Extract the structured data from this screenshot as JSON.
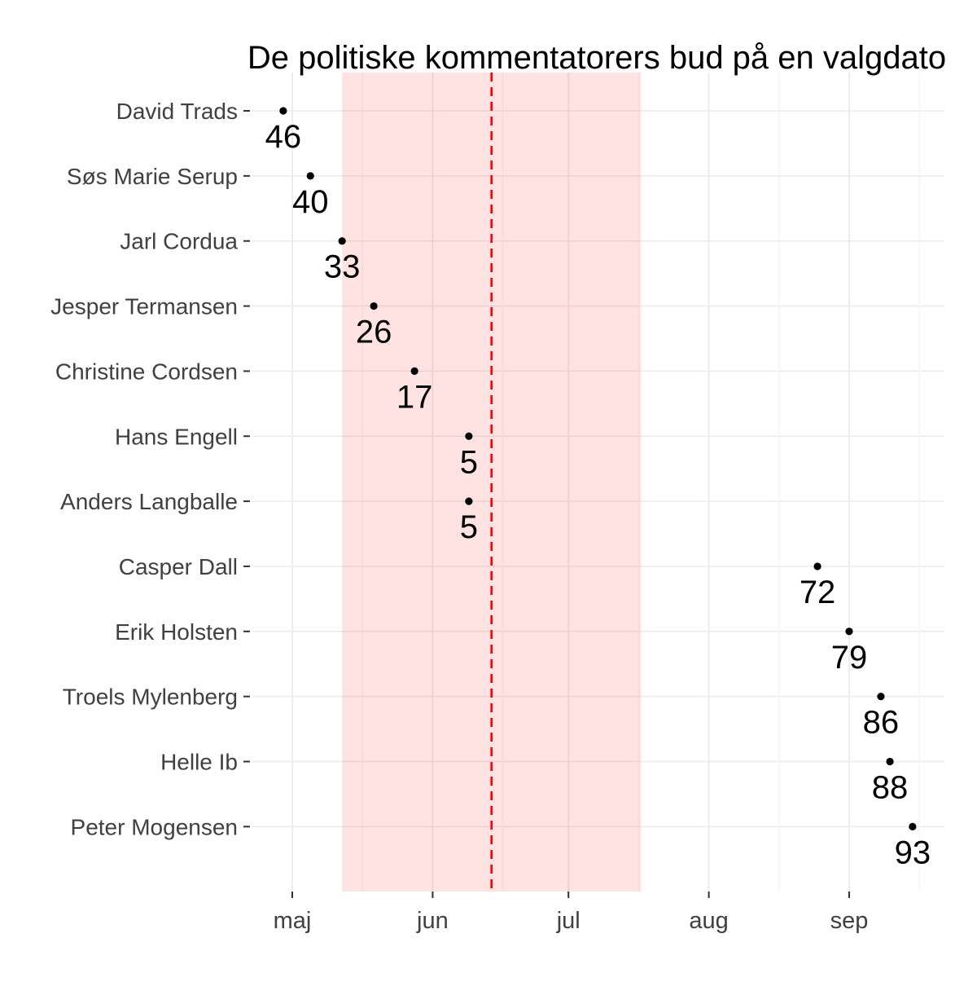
{
  "chart_data": {
    "type": "scatter",
    "title": "De politiske kommentatorers bud på en valgdato",
    "orientation": "horizontal-dotplot",
    "x_axis": {
      "tick_labels": [
        "maj",
        "jun",
        "jul",
        "aug",
        "sep"
      ],
      "tick_day_offsets_from_may1": [
        0,
        31,
        61,
        92,
        123
      ],
      "minor_gridline_day_offsets": [
        15.5,
        46.5,
        76.5,
        107.5,
        138.5
      ],
      "domain_day_offsets": [
        -8.8,
        144
      ],
      "grid": "on"
    },
    "y_axis": {
      "categories": [
        "David Trads",
        "Søs Marie Serup",
        "Jarl Cordua",
        "Jesper Termansen",
        "Christine Cordsen",
        "Hans Engell",
        "Anders Langballe",
        "Casper Dall",
        "Erik Holsten",
        "Troels Mylenberg",
        "Helle Ib",
        "Peter Mogensen"
      ]
    },
    "rows": [
      {
        "name": "David Trads",
        "label": "46",
        "day": -2,
        "approx_date": "29 apr"
      },
      {
        "name": "Søs Marie Serup",
        "label": "40",
        "day": 4,
        "approx_date": "5 maj"
      },
      {
        "name": "Jarl Cordua",
        "label": "33",
        "day": 11,
        "approx_date": "12 maj"
      },
      {
        "name": "Jesper Termansen",
        "label": "26",
        "day": 18,
        "approx_date": "19 maj"
      },
      {
        "name": "Christine Cordsen",
        "label": "17",
        "day": 27,
        "approx_date": "28 maj"
      },
      {
        "name": "Hans Engell",
        "label": "5",
        "day": 39,
        "approx_date": "9 jun"
      },
      {
        "name": "Anders Langballe",
        "label": "5",
        "day": 39,
        "approx_date": "9 jun"
      },
      {
        "name": "Casper Dall",
        "label": "72",
        "day": 116,
        "approx_date": "25 aug"
      },
      {
        "name": "Erik Holsten",
        "label": "79",
        "day": 123,
        "approx_date": "1 sep"
      },
      {
        "name": "Troels Mylenberg",
        "label": "86",
        "day": 130,
        "approx_date": "8 sep"
      },
      {
        "name": "Helle Ib",
        "label": "88",
        "day": 132,
        "approx_date": "10 sep"
      },
      {
        "name": "Peter Mogensen",
        "label": "93",
        "day": 137,
        "approx_date": "15 sep"
      }
    ],
    "annotations": {
      "shaded_band": {
        "from_day": 11,
        "to_day": 77,
        "fill": "#FF0000",
        "opacity": 0.11
      },
      "dashed_vline": {
        "day": 44,
        "approx_date": "14 jun",
        "color": "#FF0000",
        "line_style": "dashed"
      }
    },
    "colors": {
      "point": "#000000",
      "value_label": "#000000",
      "title": "#000000",
      "axis_text": "#404040",
      "tick_mark": "#333333",
      "grid_major": "#EBEBEB",
      "grid_minor": "#F4F4F4",
      "background": "#FFFFFF"
    },
    "legend_position": "none"
  }
}
